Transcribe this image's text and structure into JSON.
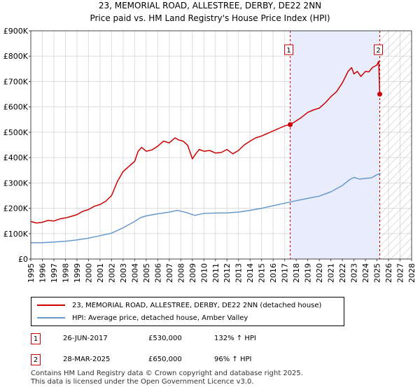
{
  "chart_data": {
    "type": "line",
    "title": "23, MEMORIAL ROAD, ALLESTREE, DERBY, DE22 2NN",
    "subtitle": "Price paid vs. HM Land Registry's House Price Index (HPI)",
    "xlim": [
      1995,
      2028
    ],
    "ylim": [
      0,
      900000
    ],
    "y_ticks": [
      0,
      100000,
      200000,
      300000,
      400000,
      500000,
      600000,
      700000,
      800000,
      900000
    ],
    "y_tick_labels": [
      "£0",
      "£100K",
      "£200K",
      "£300K",
      "£400K",
      "£500K",
      "£600K",
      "£700K",
      "£800K",
      "£900K"
    ],
    "x_ticks": [
      "1995",
      "1996",
      "1997",
      "1998",
      "1999",
      "2000",
      "2001",
      "2002",
      "2003",
      "2004",
      "2005",
      "2006",
      "2007",
      "2008",
      "2009",
      "2010",
      "2011",
      "2012",
      "2013",
      "2014",
      "2015",
      "2016",
      "2017",
      "2018",
      "2019",
      "2020",
      "2021",
      "2022",
      "2023",
      "2024",
      "2025",
      "2026",
      "2027",
      "2028"
    ],
    "shaded_region": [
      2017.48,
      2025.24
    ],
    "hatched_region": [
      2025.24,
      2028
    ],
    "series": [
      {
        "name": "23, MEMORIAL ROAD, ALLESTREE, DERBY, DE22 2NN (detached house)",
        "color": "#cc0000",
        "x": [
          1995.0,
          1995.5,
          1996.0,
          1996.5,
          1997.0,
          1997.5,
          1998.0,
          1998.5,
          1999.0,
          1999.5,
          2000.0,
          2000.5,
          2001.0,
          2001.5,
          2002.0,
          2002.5,
          2003.0,
          2003.5,
          2004.0,
          2004.3,
          2004.6,
          2005.0,
          2005.5,
          2006.0,
          2006.5,
          2007.0,
          2007.5,
          2007.8,
          2008.2,
          2008.6,
          2009.0,
          2009.3,
          2009.6,
          2010.0,
          2010.5,
          2011.0,
          2011.5,
          2012.0,
          2012.5,
          2013.0,
          2013.5,
          2014.0,
          2014.5,
          2015.0,
          2015.5,
          2016.0,
          2016.5,
          2017.0,
          2017.48,
          2018.0,
          2018.5,
          2019.0,
          2019.5,
          2020.0,
          2020.5,
          2021.0,
          2021.5,
          2022.0,
          2022.5,
          2022.8,
          2023.0,
          2023.3,
          2023.6,
          2024.0,
          2024.3,
          2024.6,
          2025.0,
          2025.15,
          2025.24
        ],
        "values": [
          148000,
          142000,
          145000,
          152000,
          150000,
          158000,
          162000,
          168000,
          175000,
          188000,
          195000,
          208000,
          215000,
          228000,
          250000,
          305000,
          345000,
          365000,
          385000,
          425000,
          440000,
          425000,
          430000,
          445000,
          465000,
          458000,
          478000,
          470000,
          465000,
          448000,
          395000,
          415000,
          432000,
          425000,
          428000,
          418000,
          420000,
          432000,
          415000,
          428000,
          450000,
          465000,
          478000,
          485000,
          495000,
          505000,
          515000,
          525000,
          530000,
          545000,
          560000,
          578000,
          588000,
          595000,
          615000,
          640000,
          660000,
          695000,
          740000,
          755000,
          730000,
          740000,
          720000,
          740000,
          738000,
          755000,
          765000,
          780000,
          650000
        ]
      },
      {
        "name": "HPI: Average price, detached house, Amber Valley",
        "color": "#6699cc",
        "x": [
          1995.0,
          1996.0,
          1997.0,
          1998.0,
          1999.0,
          2000.0,
          2001.0,
          2002.0,
          2003.0,
          2004.0,
          2004.5,
          2005.0,
          2006.0,
          2007.0,
          2007.7,
          2008.5,
          2009.2,
          2010.0,
          2011.0,
          2012.0,
          2013.0,
          2014.0,
          2015.0,
          2016.0,
          2017.0,
          2018.0,
          2019.0,
          2020.0,
          2021.0,
          2022.0,
          2022.6,
          2023.0,
          2023.5,
          2024.0,
          2024.5,
          2025.0,
          2025.3
        ],
        "values": [
          64000,
          64000,
          67000,
          70000,
          75000,
          82000,
          92000,
          102000,
          123000,
          148000,
          163000,
          170000,
          178000,
          185000,
          192000,
          183000,
          172000,
          180000,
          181000,
          182000,
          185000,
          192000,
          200000,
          210000,
          220000,
          230000,
          239000,
          248000,
          265000,
          290000,
          312000,
          322000,
          315000,
          318000,
          320000,
          332000,
          338000
        ]
      }
    ],
    "annotations": [
      {
        "label": "1",
        "x": 2017.48,
        "value": 530000
      },
      {
        "label": "2",
        "x": 2025.24,
        "value": 650000
      }
    ]
  },
  "legend": {
    "items": [
      {
        "label": "23, MEMORIAL ROAD, ALLESTREE, DERBY, DE22 2NN (detached house)",
        "color": "#cc0000"
      },
      {
        "label": "HPI: Average price, detached house, Amber Valley",
        "color": "#6699cc"
      }
    ]
  },
  "sales": [
    {
      "num": "1",
      "date": "26-JUN-2017",
      "price": "£530,000",
      "hpi": "132% ↑ HPI"
    },
    {
      "num": "2",
      "date": "28-MAR-2025",
      "price": "£650,000",
      "hpi": "96% ↑ HPI"
    }
  ],
  "footer": {
    "line1": "Contains HM Land Registry data © Crown copyright and database right 2025.",
    "line2": "This data is licensed under the Open Government Licence v3.0."
  }
}
